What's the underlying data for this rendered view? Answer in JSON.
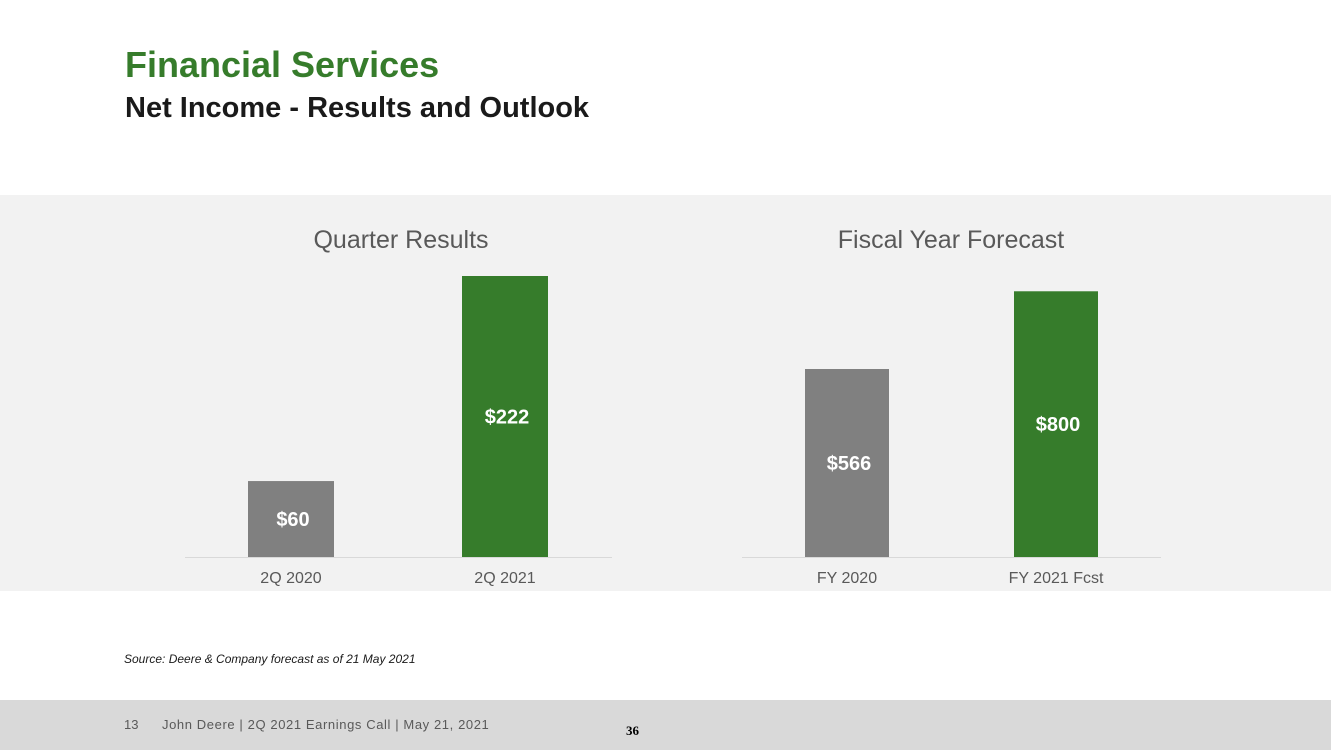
{
  "header": {
    "title": "Financial Services",
    "subtitle": "Net Income - Results and Outlook"
  },
  "colors": {
    "brand_green": "#367C2B",
    "gray_bar": "#808080",
    "panel_bg": "#f2f2f2"
  },
  "chart_data": [
    {
      "type": "bar",
      "title": "Quarter Results",
      "categories": [
        "2Q 2020",
        "2Q 2021"
      ],
      "values": [
        60,
        222
      ],
      "value_labels": [
        "$60",
        "$222"
      ],
      "bar_colors": [
        "#808080",
        "#367C2B"
      ],
      "ylim": [
        0,
        222
      ]
    },
    {
      "type": "bar",
      "title": "Fiscal Year Forecast",
      "categories": [
        "FY 2020",
        "FY 2021 Fcst"
      ],
      "values": [
        566,
        800
      ],
      "value_labels": [
        "$566",
        "$800"
      ],
      "bar_colors": [
        "#808080",
        "#367C2B"
      ],
      "ylim": [
        0,
        846
      ]
    }
  ],
  "source_note": "Source: Deere & Company forecast as of 21 May 2021",
  "footer": {
    "page": "13",
    "text": "John Deere | 2Q 2021 Earnings Call | May 21, 2021",
    "number": "36"
  }
}
